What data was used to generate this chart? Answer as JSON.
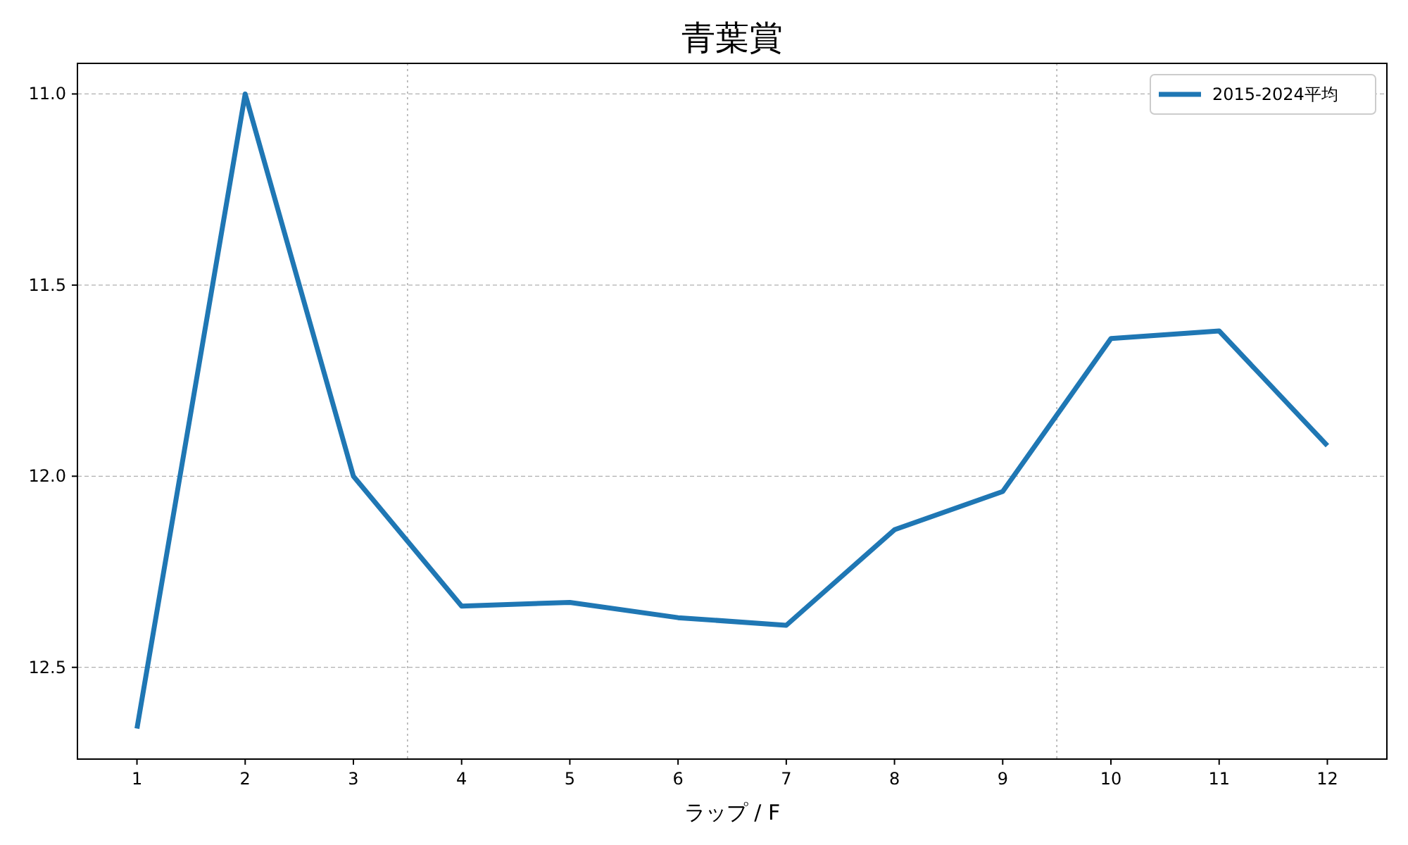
{
  "chart_data": {
    "type": "line",
    "title": "青葉賞",
    "xlabel": "ラップ / F",
    "x": [
      1,
      2,
      3,
      4,
      5,
      6,
      7,
      8,
      9,
      10,
      11,
      12
    ],
    "series": [
      {
        "name": "2015-2024平均",
        "color": "#1f77b4",
        "values": [
          12.66,
          11.0,
          12.0,
          12.34,
          12.33,
          12.37,
          12.39,
          12.14,
          12.04,
          11.64,
          11.62,
          11.92
        ]
      }
    ],
    "xlim": [
      0.45,
      12.55
    ],
    "ylim": [
      12.74,
      10.92
    ],
    "xticks": [
      1,
      2,
      3,
      4,
      5,
      6,
      7,
      8,
      9,
      10,
      11,
      12
    ],
    "yticks": [
      {
        "value": 11.0,
        "label": "11.0"
      },
      {
        "value": 11.5,
        "label": "11.5"
      },
      {
        "value": 12.0,
        "label": "12.0"
      },
      {
        "value": 12.5,
        "label": "12.5"
      }
    ],
    "grid": "y",
    "legend": "top right",
    "ref_lines": [
      {
        "axis": "x",
        "value": 3.5,
        "color": "#b0b0b0",
        "line_style": "dotted"
      },
      {
        "axis": "x",
        "value": 9.5,
        "color": "#b0b0b0",
        "line_style": "dotted"
      }
    ]
  }
}
